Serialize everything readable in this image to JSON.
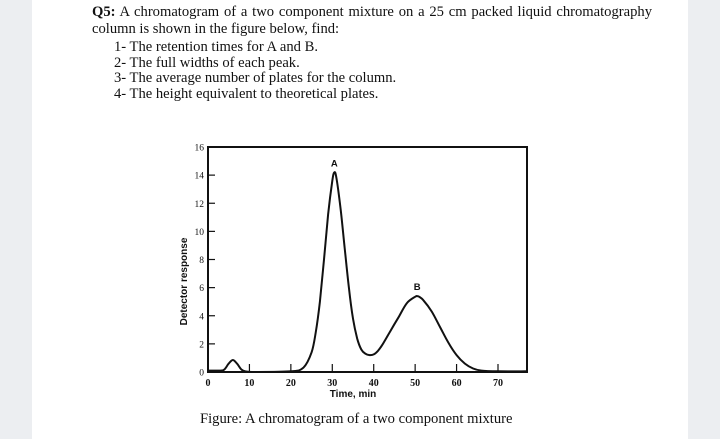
{
  "question": {
    "number": "Q5:",
    "text": "A chromatogram of a two component mixture on a 25 cm packed liquid chromatography column is shown in the figure below, find:",
    "items": [
      "1- The retention times for A and B.",
      "2- The full widths of each peak.",
      "3- The average number of plates for the column.",
      "4- The height equivalent to theoretical plates."
    ]
  },
  "chart_data": {
    "type": "line",
    "xlabel": "Time, min",
    "ylabel": "Detector response",
    "xlim": [
      0,
      77
    ],
    "ylim": [
      0,
      16
    ],
    "x_ticks": [
      "0",
      "10",
      "20",
      "30",
      "40",
      "50",
      "60",
      "70"
    ],
    "y_ticks": [
      "0",
      "2",
      "4",
      "6",
      "8",
      "10",
      "12",
      "14",
      "16"
    ],
    "peak_labels": [
      "A",
      "B"
    ],
    "peaks": [
      {
        "name": "A",
        "retention_time": 30.5,
        "height": 14.2
      },
      {
        "name": "B",
        "retention_time": 50.5,
        "height": 5.4
      },
      {
        "name": "",
        "retention_time": 6.0,
        "height": 0.8
      }
    ],
    "series": [
      {
        "x": [
          0,
          3,
          4,
          5,
          6,
          7,
          8,
          9,
          12,
          20,
          23,
          25,
          26,
          27,
          28,
          29,
          30,
          30.5,
          31,
          32,
          33,
          34,
          35,
          36,
          37,
          38,
          39,
          40,
          41,
          42,
          44,
          46,
          48,
          50,
          50.5,
          51,
          52,
          54,
          56,
          58,
          60,
          62,
          64,
          66,
          70,
          77
        ],
        "y": [
          0.1,
          0.1,
          0.2,
          0.6,
          0.85,
          0.6,
          0.2,
          0.05,
          0.0,
          0.05,
          0.3,
          1.4,
          2.8,
          5.0,
          8.0,
          11.2,
          13.6,
          14.2,
          13.8,
          11.6,
          8.8,
          6.0,
          3.8,
          2.4,
          1.6,
          1.3,
          1.2,
          1.25,
          1.5,
          1.9,
          2.9,
          3.9,
          4.9,
          5.35,
          5.4,
          5.35,
          5.1,
          4.3,
          3.2,
          2.1,
          1.2,
          0.6,
          0.25,
          0.1,
          0.05,
          0.05
        ]
      }
    ]
  },
  "figure_caption": "Figure: A chromatogram of a two component mixture"
}
